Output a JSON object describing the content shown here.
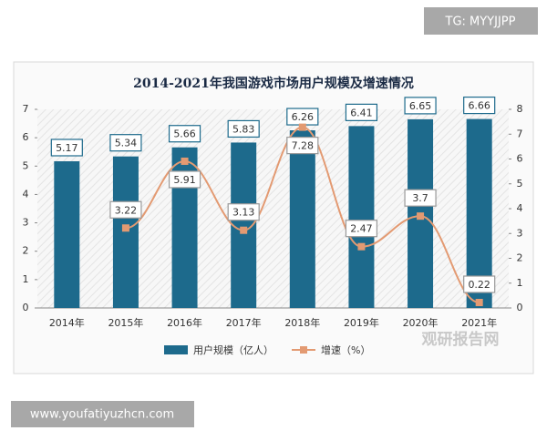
{
  "chart_data": {
    "type": "bar",
    "title": "2014-2021年我国游戏市场用户规模及增速情况",
    "categories": [
      "2014年",
      "2015年",
      "2016年",
      "2017年",
      "2018年",
      "2019年",
      "2020年",
      "2021年"
    ],
    "series": [
      {
        "name": "用户规模（亿人）",
        "type": "bar",
        "color": "#1d6a8c",
        "values": [
          5.17,
          5.34,
          5.66,
          5.83,
          6.26,
          6.41,
          6.65,
          6.66
        ]
      },
      {
        "name": "增速（%）",
        "type": "line",
        "axis": "y2",
        "color": "#e39a72",
        "values": [
          null,
          3.22,
          5.91,
          3.13,
          7.28,
          2.47,
          3.7,
          0.22
        ]
      }
    ],
    "ylim": [
      0,
      7
    ],
    "yticks": [
      0,
      1,
      2,
      3,
      4,
      5,
      6,
      7
    ],
    "y2lim": [
      0,
      8
    ],
    "y2ticks": [
      0,
      1,
      2,
      3,
      4,
      5,
      6,
      7,
      8
    ],
    "legend": "bottom"
  },
  "watermarks": {
    "tg": "TG: MYYJJPP",
    "url": "www.youfatiyuzhcn.com",
    "brand": "观研报告网"
  }
}
